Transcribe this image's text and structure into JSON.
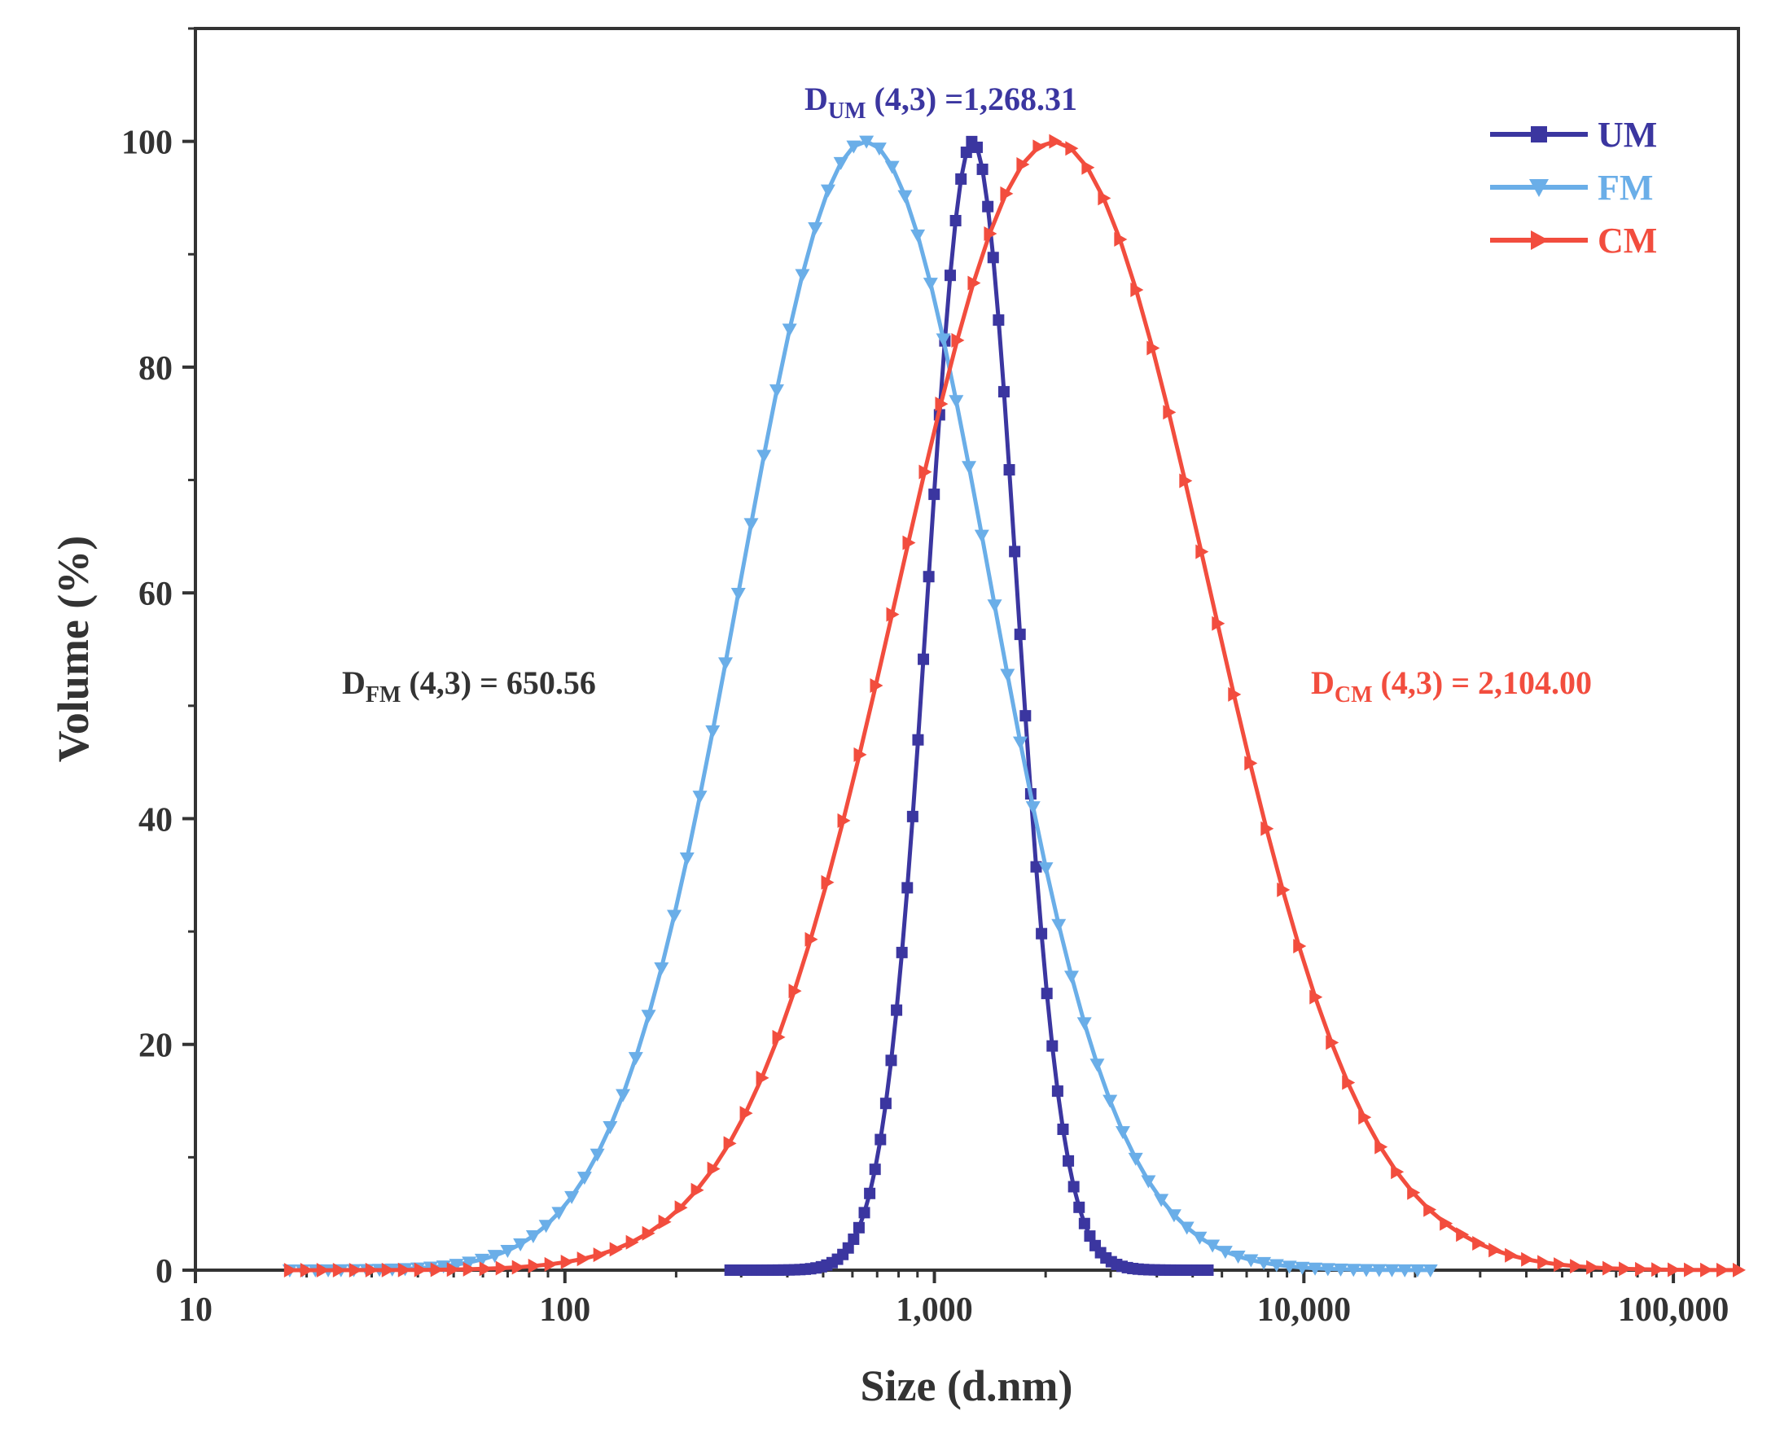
{
  "chart_data": {
    "type": "line",
    "xscale": "log",
    "xlabel": "Size (d.nm)",
    "ylabel": "Volume (%)",
    "xlim": [
      10,
      150000
    ],
    "ylim": [
      0,
      110
    ],
    "xticks": [
      {
        "value": 10,
        "label": "10"
      },
      {
        "value": 100,
        "label": "100"
      },
      {
        "value": 1000,
        "label": "1,000"
      },
      {
        "value": 10000,
        "label": "10,000"
      },
      {
        "value": 100000,
        "label": "100,000"
      }
    ],
    "yticks": [
      {
        "value": 0,
        "label": "0"
      },
      {
        "value": 20,
        "label": "20"
      },
      {
        "value": 40,
        "label": "40"
      },
      {
        "value": 60,
        "label": "60"
      },
      {
        "value": 80,
        "label": "80"
      },
      {
        "value": 100,
        "label": "100"
      }
    ],
    "series": [
      {
        "name": "UM",
        "color": "#3b36a0",
        "marker": "square",
        "x_range": [
          280,
          5500
        ],
        "n_points": 90,
        "peak_x": 1268.31,
        "log10_sigma": 0.12,
        "peak_value": 100
      },
      {
        "name": "FM",
        "color": "#6aaee8",
        "marker": "triangle-down",
        "x_range": [
          18,
          22000
        ],
        "n_points": 90,
        "peak_x": 650.56,
        "log10_sigma": 0.34,
        "peak_value": 100
      },
      {
        "name": "CM",
        "color": "#f24d3e",
        "marker": "triangle-right",
        "x_range": [
          18,
          150000
        ],
        "n_points": 90,
        "peak_x": 2104.0,
        "log10_sigma": 0.42,
        "peak_value": 100
      }
    ],
    "annotations": [
      {
        "id": "um",
        "main": "D",
        "sub": "UM",
        "rest": " (4,3) =1,268.31",
        "color": "#3b36a0"
      },
      {
        "id": "fm",
        "main": "D",
        "sub": "FM",
        "rest": " (4,3) = 650.56",
        "color": "#333333"
      },
      {
        "id": "cm",
        "main": "D",
        "sub": "CM",
        "rest": " (4,3) = 2,104.00",
        "color": "#f24d3e"
      }
    ],
    "legend": {
      "position": "top-right"
    }
  }
}
